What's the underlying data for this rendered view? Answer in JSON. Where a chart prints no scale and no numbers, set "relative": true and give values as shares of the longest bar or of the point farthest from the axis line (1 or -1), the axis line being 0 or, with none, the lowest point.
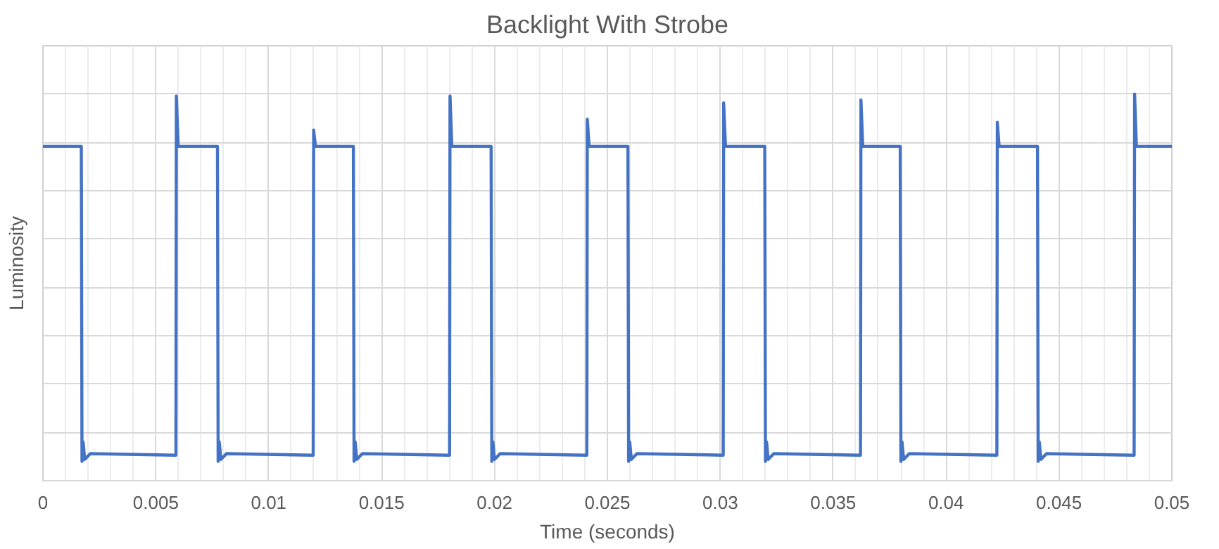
{
  "chart_data": {
    "type": "line",
    "title": "Backlight With Strobe",
    "xlabel": "Time (seconds)",
    "ylabel": "Luminosity",
    "relative": true,
    "grid": true,
    "xlim": [
      0,
      0.05
    ],
    "xticks": [
      0,
      0.005,
      0.01,
      0.015,
      0.02,
      0.025,
      0.03,
      0.035,
      0.04,
      0.045,
      0.05
    ],
    "series": [
      {
        "color": "#4472c4",
        "x": [
          0,
          0.0017,
          0.00173,
          0.00178,
          0.00185,
          0.0021,
          0.00589,
          0.00591,
          0.00599,
          0.00773,
          0.00776,
          0.00781,
          0.00788,
          0.00813,
          0.01197,
          0.01199,
          0.01207,
          0.01375,
          0.01378,
          0.01383,
          0.0139,
          0.01415,
          0.01801,
          0.01803,
          0.01811,
          0.01985,
          0.01988,
          0.01993,
          0.02,
          0.02025,
          0.02409,
          0.02411,
          0.02419,
          0.02591,
          0.02594,
          0.02599,
          0.02606,
          0.02631,
          0.03013,
          0.03015,
          0.03023,
          0.03197,
          0.032,
          0.03205,
          0.03212,
          0.03237,
          0.03621,
          0.03623,
          0.03631,
          0.03797,
          0.038,
          0.03805,
          0.03812,
          0.03837,
          0.04225,
          0.04227,
          0.04235,
          0.04405,
          0.04408,
          0.04413,
          0.0442,
          0.04445,
          0.04833,
          0.04835,
          0.04843,
          0.05
        ],
        "values": [
          0.865,
          0.865,
          0.05,
          0.1,
          0.055,
          0.07,
          0.066,
          0.995,
          0.865,
          0.865,
          0.05,
          0.1,
          0.055,
          0.07,
          0.066,
          0.907,
          0.865,
          0.865,
          0.05,
          0.1,
          0.055,
          0.07,
          0.066,
          0.995,
          0.865,
          0.865,
          0.05,
          0.1,
          0.055,
          0.07,
          0.066,
          0.935,
          0.865,
          0.865,
          0.05,
          0.1,
          0.055,
          0.07,
          0.066,
          0.977,
          0.865,
          0.865,
          0.05,
          0.1,
          0.055,
          0.07,
          0.066,
          0.985,
          0.865,
          0.865,
          0.05,
          0.1,
          0.055,
          0.07,
          0.066,
          0.927,
          0.865,
          0.865,
          0.05,
          0.1,
          0.055,
          0.07,
          0.066,
          1.0,
          0.865,
          0.865
        ]
      }
    ]
  }
}
